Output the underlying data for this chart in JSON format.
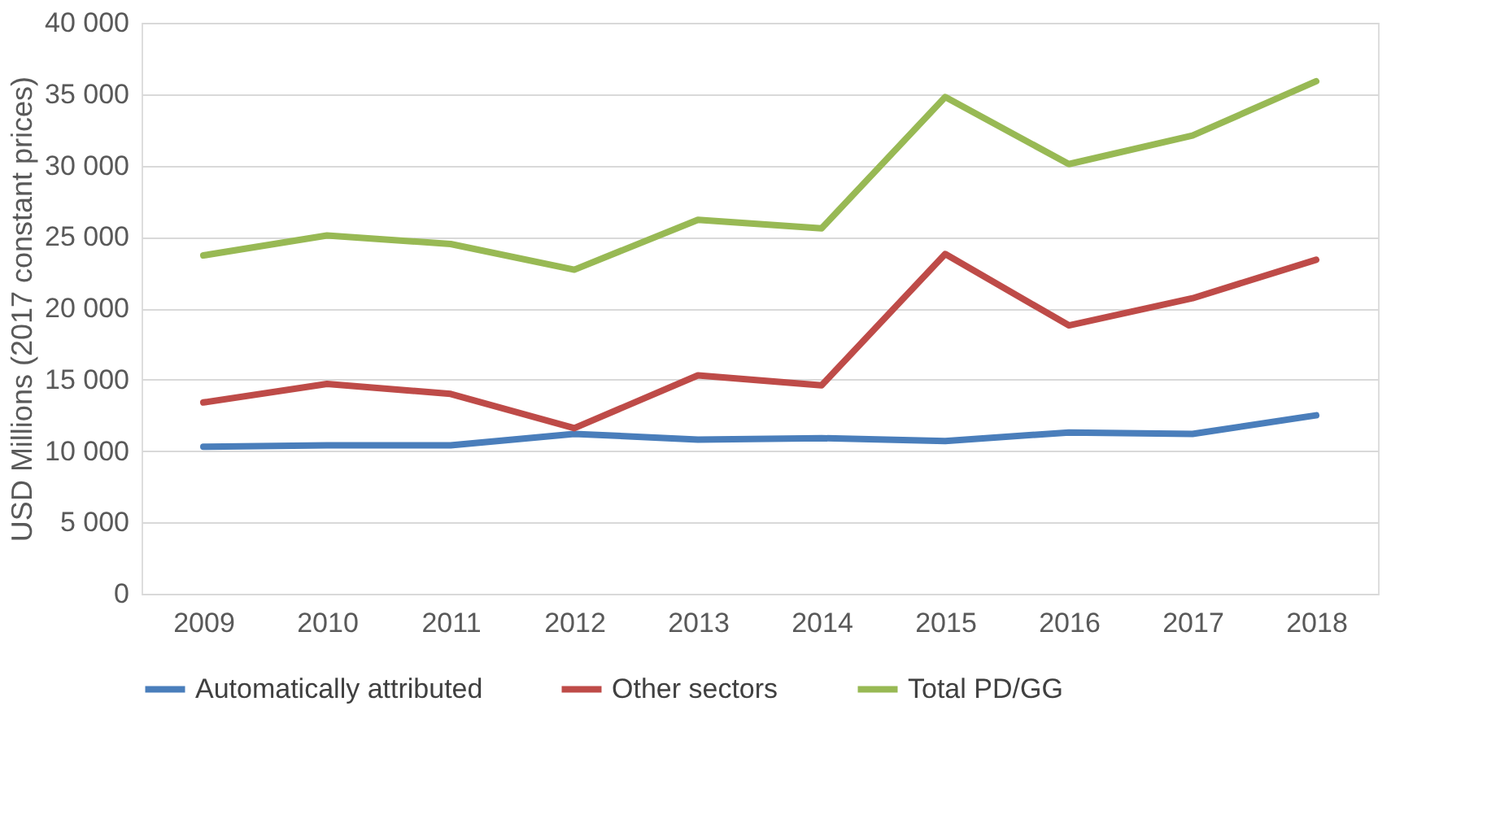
{
  "chart_data": {
    "type": "line",
    "ylabel": "USD Millions (2017 constant prices)",
    "categories": [
      "2009",
      "2010",
      "2011",
      "2012",
      "2013",
      "2014",
      "2015",
      "2016",
      "2017",
      "2018"
    ],
    "series": [
      {
        "name": "Automatically attributed",
        "color": "#4a7ebb",
        "values": [
          10300,
          10400,
          10400,
          11200,
          10800,
          10900,
          10700,
          11300,
          11200,
          12500
        ]
      },
      {
        "name": "Other sectors",
        "color": "#be4b48",
        "values": [
          13400,
          14700,
          14000,
          11600,
          15300,
          14600,
          23800,
          18800,
          20700,
          23400
        ]
      },
      {
        "name": "Total PD/GG",
        "color": "#98b954",
        "values": [
          23700,
          25100,
          24500,
          22700,
          26200,
          25600,
          34800,
          30100,
          32100,
          35900
        ]
      }
    ],
    "ylim": [
      0,
      40000
    ],
    "yticks": [
      0,
      {
        "value": 5000,
        "label": "5 000"
      },
      {
        "value": 10000,
        "label": "10 000"
      },
      {
        "value": 15000,
        "label": "15 000"
      },
      {
        "value": 20000,
        "label": "20 000"
      },
      {
        "value": 25000,
        "label": "25 000"
      },
      {
        "value": 30000,
        "label": "30 000"
      },
      {
        "value": 35000,
        "label": "35 000"
      },
      {
        "value": 40000,
        "label": "40 000"
      }
    ],
    "grid": "y",
    "legend": "bottom",
    "marker": "none",
    "line_style": "solid"
  }
}
